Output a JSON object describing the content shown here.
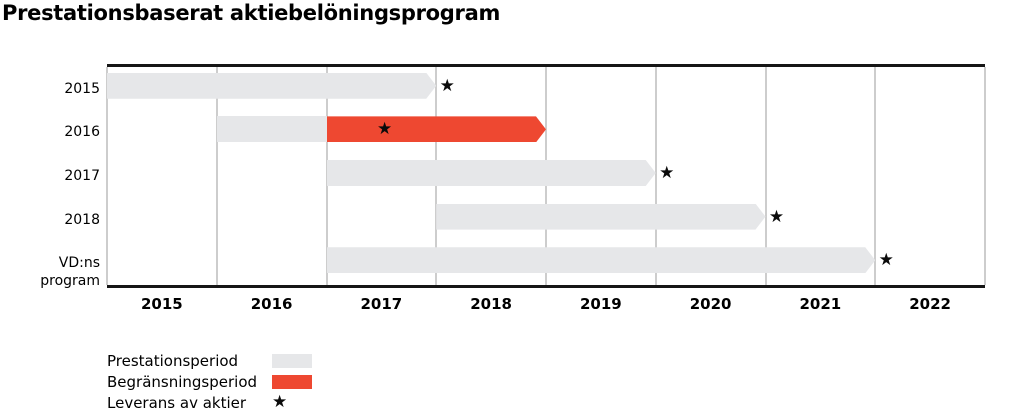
{
  "chart_data": {
    "type": "bar",
    "variant": "gantt-timeline",
    "title": "Prestationsbaserat aktiebelöningsprogram",
    "star_symbol": "★",
    "x_axis": {
      "tick_labels": [
        "2015",
        "2016",
        "2017",
        "2018",
        "2019",
        "2020",
        "2021",
        "2022"
      ],
      "range_years": [
        2015,
        2023
      ],
      "gridlines": true
    },
    "rows": [
      {
        "label": "2015",
        "bars": [
          {
            "kind": "performance",
            "start": 2015.0,
            "end": 2018.0,
            "arrow": true
          }
        ],
        "delivery": 2018.1
      },
      {
        "label": "2016",
        "bars": [
          {
            "kind": "performance",
            "start": 2016.0,
            "end": 2017.0,
            "arrow": false
          },
          {
            "kind": "restriction",
            "start": 2017.0,
            "end": 2019.0,
            "arrow": true
          }
        ],
        "delivery": 2017.53
      },
      {
        "label": "2017",
        "bars": [
          {
            "kind": "performance",
            "start": 2017.0,
            "end": 2020.0,
            "arrow": true
          }
        ],
        "delivery": 2020.1
      },
      {
        "label": "2018",
        "bars": [
          {
            "kind": "performance",
            "start": 2018.0,
            "end": 2021.0,
            "arrow": true
          }
        ],
        "delivery": 2021.1
      },
      {
        "label": "VD:ns program",
        "bars": [
          {
            "kind": "performance",
            "start": 2017.0,
            "end": 2022.0,
            "arrow": true
          }
        ],
        "delivery": 2022.1
      }
    ],
    "legend": [
      {
        "key": "performance",
        "label": "Prestationsperiod",
        "marker": "bar"
      },
      {
        "key": "restriction",
        "label": "Begränsningsperiod",
        "marker": "bar"
      },
      {
        "key": "delivery",
        "label": "Leverans av aktier",
        "marker": "star",
        "symbol": "★"
      }
    ],
    "colors": {
      "performance": "#e6e7e9",
      "restriction": "#ee4831",
      "star": "#0b0b0b",
      "gridline": "#cdcdcd",
      "axis_border": "#161616",
      "text": "#000000"
    }
  }
}
